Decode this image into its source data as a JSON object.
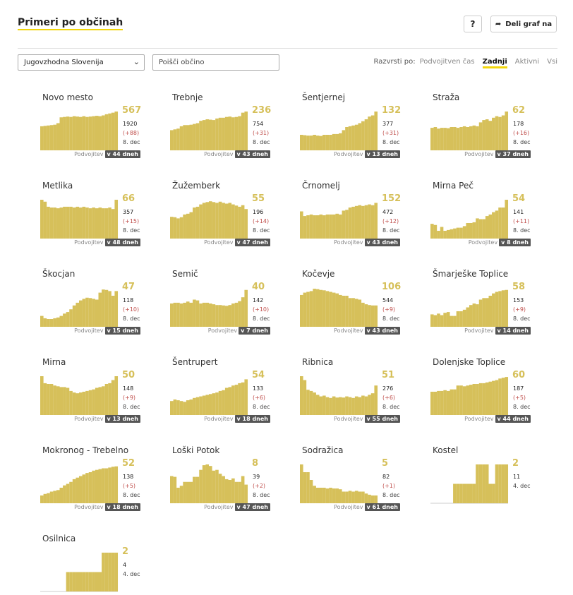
{
  "header": {
    "title": "Primeri po občinah",
    "help_label": "?",
    "share_label": "Deli graf na",
    "share_icon": "share-arrow-icon"
  },
  "toolbar": {
    "region_select": "Jugovzhodna Slovenija",
    "search_placeholder": "Poišči občino",
    "sort_label": "Razvrsti po:",
    "sort_options": [
      "Podvojitven čas",
      "Zadnji",
      "Aktivni",
      "Vsi"
    ],
    "sort_active": "Zadnji"
  },
  "colors": {
    "bar": "#d6c05a",
    "accent": "#f2d60b",
    "delta": "#c0504d",
    "badge": "#555555"
  },
  "chart_data": [
    {
      "type": "bar",
      "name": "Novo mesto",
      "last": "567",
      "total": "1920",
      "delta": "(+88)",
      "date": "8. dec",
      "doubling_label": "Podvojitev",
      "doubling": "v 44 dneh",
      "values": [
        0.62,
        0.63,
        0.64,
        0.65,
        0.66,
        0.7,
        0.85,
        0.86,
        0.87,
        0.86,
        0.88,
        0.87,
        0.86,
        0.88,
        0.86,
        0.87,
        0.88,
        0.89,
        0.88,
        0.9,
        0.93,
        0.95,
        0.97,
        1.0
      ]
    },
    {
      "type": "bar",
      "name": "Trebnje",
      "last": "236",
      "total": "754",
      "delta": "(+31)",
      "date": "8. dec",
      "doubling_label": "Podvojitev",
      "doubling": "v 43 dneh",
      "values": [
        0.52,
        0.54,
        0.56,
        0.62,
        0.65,
        0.65,
        0.66,
        0.68,
        0.7,
        0.76,
        0.78,
        0.8,
        0.79,
        0.78,
        0.82,
        0.84,
        0.84,
        0.86,
        0.87,
        0.85,
        0.86,
        0.88,
        0.97,
        1.0
      ]
    },
    {
      "type": "bar",
      "name": "Šentjernej",
      "last": "132",
      "total": "377",
      "delta": "(+31)",
      "date": "8. dec",
      "doubling_label": "Podvojitev",
      "doubling": "v 13 dneh",
      "values": [
        0.4,
        0.39,
        0.38,
        0.38,
        0.4,
        0.38,
        0.37,
        0.4,
        0.4,
        0.4,
        0.42,
        0.42,
        0.44,
        0.52,
        0.6,
        0.62,
        0.64,
        0.66,
        0.7,
        0.75,
        0.8,
        0.87,
        0.9,
        1.0
      ]
    },
    {
      "type": "bar",
      "name": "Straža",
      "last": "62",
      "total": "178",
      "delta": "(+16)",
      "date": "8. dec",
      "doubling_label": "Podvojitev",
      "doubling": "v 37 dneh",
      "values": [
        0.58,
        0.6,
        0.56,
        0.58,
        0.58,
        0.57,
        0.6,
        0.6,
        0.58,
        0.6,
        0.62,
        0.6,
        0.62,
        0.64,
        0.62,
        0.72,
        0.78,
        0.8,
        0.76,
        0.84,
        0.88,
        0.86,
        0.9,
        1.0
      ]
    },
    {
      "type": "bar",
      "name": "Metlika",
      "last": "66",
      "total": "357",
      "delta": "(+15)",
      "date": "8. dec",
      "doubling_label": "Podvojitev",
      "doubling": "v 48 dneh",
      "values": [
        1.0,
        0.95,
        0.82,
        0.8,
        0.8,
        0.78,
        0.8,
        0.82,
        0.82,
        0.82,
        0.8,
        0.82,
        0.8,
        0.82,
        0.8,
        0.78,
        0.8,
        0.78,
        0.8,
        0.78,
        0.78,
        0.8,
        0.76,
        1.0
      ]
    },
    {
      "type": "bar",
      "name": "Žužemberk",
      "last": "55",
      "total": "196",
      "delta": "(+14)",
      "date": "8. dec",
      "doubling_label": "Podvojitev",
      "doubling": "v 47 dneh",
      "values": [
        0.56,
        0.55,
        0.52,
        0.55,
        0.62,
        0.64,
        0.68,
        0.8,
        0.82,
        0.88,
        0.92,
        0.94,
        0.96,
        0.94,
        0.92,
        0.95,
        0.92,
        0.9,
        0.92,
        0.88,
        0.85,
        0.82,
        0.86,
        0.76
      ]
    },
    {
      "type": "bar",
      "name": "Črnomelj",
      "last": "152",
      "total": "472",
      "delta": "(+12)",
      "date": "8. dec",
      "doubling_label": "Podvojitev",
      "doubling": "v 43 dneh",
      "values": [
        0.7,
        0.58,
        0.6,
        0.62,
        0.6,
        0.6,
        0.62,
        0.6,
        0.62,
        0.62,
        0.62,
        0.64,
        0.62,
        0.72,
        0.74,
        0.8,
        0.82,
        0.84,
        0.86,
        0.84,
        0.86,
        0.88,
        0.86,
        0.92
      ]
    },
    {
      "type": "bar",
      "name": "Mirna Peč",
      "last": "54",
      "total": "141",
      "delta": "(+11)",
      "date": "8. dec",
      "doubling_label": "Podvojitev",
      "doubling": "v 8 dneh",
      "values": [
        0.38,
        0.35,
        0.2,
        0.3,
        0.2,
        0.22,
        0.24,
        0.26,
        0.28,
        0.28,
        0.32,
        0.4,
        0.4,
        0.42,
        0.52,
        0.5,
        0.5,
        0.58,
        0.62,
        0.68,
        0.72,
        0.8,
        0.8,
        1.0
      ]
    },
    {
      "type": "bar",
      "name": "Škocjan",
      "last": "47",
      "total": "118",
      "delta": "(+10)",
      "date": "8. dec",
      "doubling_label": "Podvojitev",
      "doubling": "v 15 dneh",
      "values": [
        0.28,
        0.22,
        0.2,
        0.2,
        0.22,
        0.24,
        0.28,
        0.34,
        0.38,
        0.45,
        0.55,
        0.62,
        0.68,
        0.72,
        0.75,
        0.74,
        0.72,
        0.7,
        0.88,
        0.96,
        0.95,
        0.92,
        0.8,
        0.92
      ]
    },
    {
      "type": "bar",
      "name": "Semič",
      "last": "40",
      "total": "142",
      "delta": "(+10)",
      "date": "8. dec",
      "doubling_label": "Podvojitev",
      "doubling": "v 7 dneh",
      "values": [
        0.6,
        0.62,
        0.62,
        0.6,
        0.62,
        0.65,
        0.62,
        0.7,
        0.68,
        0.6,
        0.62,
        0.62,
        0.6,
        0.58,
        0.56,
        0.56,
        0.55,
        0.54,
        0.56,
        0.6,
        0.62,
        0.66,
        0.76,
        0.95
      ]
    },
    {
      "type": "bar",
      "name": "Kočevje",
      "last": "106",
      "total": "544",
      "delta": "(+9)",
      "date": "8. dec",
      "doubling_label": "Podvojitev",
      "doubling": "v 43 dneh",
      "values": [
        0.82,
        0.88,
        0.9,
        0.92,
        0.98,
        0.97,
        0.95,
        0.94,
        0.92,
        0.9,
        0.88,
        0.86,
        0.82,
        0.8,
        0.8,
        0.74,
        0.74,
        0.72,
        0.7,
        0.62,
        0.58,
        0.56,
        0.55,
        0.55
      ]
    },
    {
      "type": "bar",
      "name": "Šmarješke Toplice",
      "last": "58",
      "total": "153",
      "delta": "(+9)",
      "date": "8. dec",
      "doubling_label": "Podvojitev",
      "doubling": "v 14 dneh",
      "values": [
        0.32,
        0.3,
        0.34,
        0.3,
        0.36,
        0.38,
        0.28,
        0.28,
        0.4,
        0.4,
        0.44,
        0.5,
        0.56,
        0.6,
        0.58,
        0.7,
        0.74,
        0.74,
        0.8,
        0.86,
        0.9,
        0.92,
        0.94,
        0.95
      ]
    },
    {
      "type": "bar",
      "name": "Mirna",
      "last": "50",
      "total": "148",
      "delta": "(+9)",
      "date": "8. dec",
      "doubling_label": "Podvojitev",
      "doubling": "v 13 dneh",
      "values": [
        1.0,
        0.82,
        0.8,
        0.8,
        0.76,
        0.74,
        0.72,
        0.72,
        0.7,
        0.62,
        0.58,
        0.56,
        0.58,
        0.6,
        0.62,
        0.64,
        0.66,
        0.7,
        0.72,
        0.74,
        0.8,
        0.82,
        0.9,
        1.0
      ]
    },
    {
      "type": "bar",
      "name": "Šentrupert",
      "last": "54",
      "total": "133",
      "delta": "(+6)",
      "date": "8. dec",
      "doubling_label": "Podvojitev",
      "doubling": "v 18 dneh",
      "values": [
        0.36,
        0.4,
        0.38,
        0.36,
        0.34,
        0.38,
        0.4,
        0.44,
        0.46,
        0.48,
        0.5,
        0.52,
        0.54,
        0.56,
        0.58,
        0.62,
        0.64,
        0.7,
        0.72,
        0.76,
        0.78,
        0.82,
        0.84,
        0.92
      ]
    },
    {
      "type": "bar",
      "name": "Ribnica",
      "last": "51",
      "total": "276",
      "delta": "(+6)",
      "date": "8. dec",
      "doubling_label": "Podvojitev",
      "doubling": "v 55 dneh",
      "values": [
        1.0,
        0.9,
        0.65,
        0.62,
        0.58,
        0.52,
        0.48,
        0.5,
        0.46,
        0.44,
        0.48,
        0.45,
        0.46,
        0.45,
        0.48,
        0.46,
        0.44,
        0.48,
        0.46,
        0.5,
        0.48,
        0.52,
        0.56,
        0.76
      ]
    },
    {
      "type": "bar",
      "name": "Dolenjske Toplice",
      "last": "60",
      "total": "187",
      "delta": "(+5)",
      "date": "8. dec",
      "doubling_label": "Podvojitev",
      "doubling": "v 44 dneh",
      "values": [
        0.6,
        0.6,
        0.62,
        0.62,
        0.64,
        0.62,
        0.66,
        0.66,
        0.76,
        0.76,
        0.74,
        0.76,
        0.78,
        0.8,
        0.8,
        0.82,
        0.82,
        0.84,
        0.86,
        0.88,
        0.9,
        0.94,
        0.96,
        0.98
      ]
    },
    {
      "type": "bar",
      "name": "Mokronog - Trebelno",
      "last": "52",
      "total": "138",
      "delta": "(+5)",
      "date": "8. dec",
      "doubling_label": "Podvojitev",
      "doubling": "v 18 dneh",
      "values": [
        0.2,
        0.24,
        0.26,
        0.3,
        0.32,
        0.34,
        0.4,
        0.46,
        0.5,
        0.55,
        0.62,
        0.66,
        0.7,
        0.74,
        0.78,
        0.8,
        0.84,
        0.86,
        0.88,
        0.9,
        0.9,
        0.92,
        0.94,
        0.95
      ]
    },
    {
      "type": "bar",
      "name": "Loški Potok",
      "last": "8",
      "total": "39",
      "delta": "(+2)",
      "date": "8. dec",
      "doubling_label": "Podvojitev",
      "doubling": "v 47 dneh",
      "values": [
        0.7,
        0.68,
        0.4,
        0.45,
        0.55,
        0.55,
        0.55,
        0.68,
        0.68,
        0.86,
        0.98,
        1.0,
        0.96,
        0.84,
        0.86,
        0.76,
        0.7,
        0.62,
        0.6,
        0.64,
        0.55,
        0.55,
        0.7,
        0.48
      ]
    },
    {
      "type": "bar",
      "name": "Sodražica",
      "last": "5",
      "total": "82",
      "delta": "(+1)",
      "date": "8. dec",
      "doubling_label": "Podvojitev",
      "doubling": "v 61 dneh",
      "values": [
        1.0,
        0.8,
        0.8,
        0.6,
        0.45,
        0.4,
        0.4,
        0.4,
        0.38,
        0.4,
        0.38,
        0.38,
        0.36,
        0.3,
        0.3,
        0.32,
        0.3,
        0.32,
        0.3,
        0.3,
        0.25,
        0.22,
        0.2,
        0.2
      ]
    },
    {
      "type": "bar",
      "name": "Kostel",
      "last": "2",
      "total": "11",
      "date": "4. dec",
      "values": [
        0,
        0,
        0,
        0,
        0,
        0,
        0,
        0.5,
        0.5,
        0.5,
        0.5,
        0.5,
        0.5,
        0.5,
        1.0,
        1.0,
        1.0,
        1.0,
        0.5,
        0.5,
        1.0,
        1.0,
        1.0,
        1.0
      ]
    },
    {
      "type": "bar",
      "name": "Osilnica",
      "last": "2",
      "total": "4",
      "date": "4. dec",
      "values": [
        0,
        0,
        0,
        0,
        0,
        0,
        0,
        0,
        0.5,
        0.5,
        0.5,
        0.5,
        0.5,
        0.5,
        0.5,
        0.5,
        0.5,
        0.5,
        0.5,
        1.0,
        1.0,
        1.0,
        1.0,
        1.0
      ]
    }
  ]
}
